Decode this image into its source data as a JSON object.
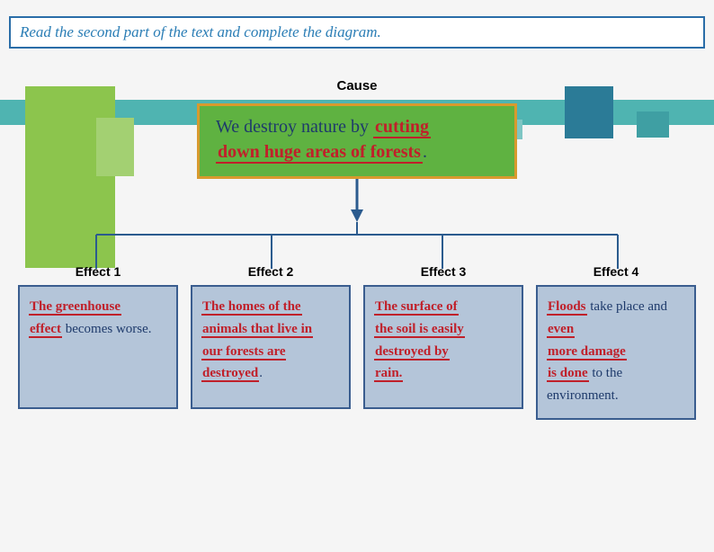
{
  "instruction": "Read the second part of the text and complete the diagram.",
  "cause": {
    "label": "Cause",
    "static_text": "We destroy nature by ",
    "fill1": "cutting",
    "fill2": "down huge areas of forests",
    "punct": "."
  },
  "effects": [
    {
      "label": "Effect 1",
      "parts": [
        {
          "type": "fill",
          "text": "The greenhouse"
        },
        {
          "type": "br"
        },
        {
          "type": "fill",
          "text": "effect"
        },
        {
          "type": "static",
          "text": " becomes worse."
        }
      ]
    },
    {
      "label": "Effect 2",
      "parts": [
        {
          "type": "fill",
          "text": "The homes of the"
        },
        {
          "type": "br"
        },
        {
          "type": "fill",
          "text": "animals that live in"
        },
        {
          "type": "br"
        },
        {
          "type": "fill",
          "text": "our forests are"
        },
        {
          "type": "br"
        },
        {
          "type": "fill",
          "text": "destroyed"
        },
        {
          "type": "static",
          "text": "."
        }
      ]
    },
    {
      "label": "Effect 3",
      "parts": [
        {
          "type": "fill",
          "text": "The surface of"
        },
        {
          "type": "br"
        },
        {
          "type": "fill",
          "text": "the soil is easily"
        },
        {
          "type": "br"
        },
        {
          "type": "fill",
          "text": "destroyed by"
        },
        {
          "type": "br"
        },
        {
          "type": "fill",
          "text": "rain."
        }
      ]
    },
    {
      "label": "Effect 4",
      "parts": [
        {
          "type": "fill",
          "text": "Floods"
        },
        {
          "type": "static",
          "text": " take place and "
        },
        {
          "type": "fill",
          "text": "even"
        },
        {
          "type": "br"
        },
        {
          "type": "fill",
          "text": "more damage"
        },
        {
          "type": "br"
        },
        {
          "type": "fill",
          "text": "is done"
        },
        {
          "type": "static",
          "text": " to the environment."
        }
      ]
    }
  ],
  "connector": {
    "stroke": "#2b5b8e",
    "stroke_width": 2,
    "arrow_fill": "#2b5b8e"
  }
}
